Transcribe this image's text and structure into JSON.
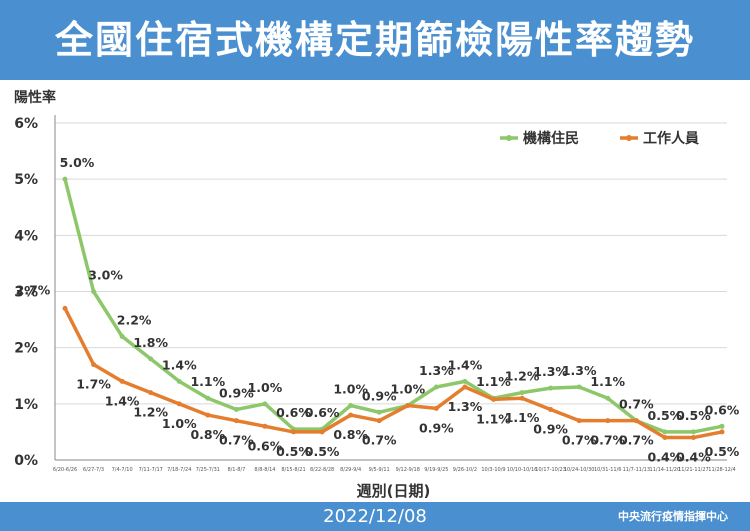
{
  "header": {
    "title": "全國住宿式機構定期篩檢陽性率趨勢"
  },
  "footer": {
    "date": "2022/12/08",
    "org": "中央流行疫情指揮中心"
  },
  "colors": {
    "band": "#4a8fd0",
    "residents": "#8cc86a",
    "staff": "#e57d2e",
    "grid": "#d9d9d9",
    "axis": "#888888"
  },
  "chart_data": {
    "type": "line",
    "ylabel": "陽性率",
    "xlabel": "週別(日期)",
    "ylim": [
      0,
      6
    ],
    "yticks": [
      "0%",
      "1%",
      "2%",
      "3%",
      "4%",
      "5%",
      "6%"
    ],
    "grid": "horizontal",
    "legend": "top-right",
    "categories": [
      "6/20-6/26",
      "6/27-7/3",
      "7/4-7/10",
      "7/11-7/17",
      "7/18-7/24",
      "7/25-7/31",
      "8/1-8/7",
      "8/8-8/14",
      "8/15-8/21",
      "8/22-8/28",
      "8/29-9/4",
      "9/5-9/11",
      "9/12-9/18",
      "9/19-9/25",
      "9/26-10/2",
      "10/3-10/9",
      "10/10-10/16",
      "10/17-10/23",
      "10/24-10/30",
      "10/31-11/6",
      "11/7-11/13",
      "11/14-11/20",
      "11/21-11/27",
      "11/28-12/4"
    ],
    "series": [
      {
        "name": "機構住民",
        "color": "#8cc86a",
        "values": [
          5.0,
          3.0,
          2.2,
          1.8,
          1.4,
          1.1,
          0.9,
          1.0,
          0.55,
          0.55,
          0.97,
          0.85,
          0.97,
          1.3,
          1.4,
          1.1,
          1.2,
          1.28,
          1.3,
          1.1,
          0.7,
          0.5,
          0.5,
          0.6
        ],
        "labels": [
          "5.0%",
          "3.0%",
          "2.2%",
          "1.8%",
          "1.4%",
          "1.1%",
          "0.9%",
          "1.0%",
          "0.6%",
          "0.6%",
          "1.0%",
          "0.9%",
          "1.0%",
          "1.3%",
          "1.4%",
          "1.1%",
          "1.2%",
          "1.3%",
          "1.3%",
          "1.1%",
          "0.7%",
          "0.5%",
          "0.5%",
          "0.6%"
        ]
      },
      {
        "name": "工作人員",
        "color": "#e57d2e",
        "values": [
          2.7,
          1.7,
          1.4,
          1.2,
          1.0,
          0.8,
          0.7,
          0.6,
          0.5,
          0.5,
          0.8,
          0.7,
          0.97,
          0.92,
          1.3,
          1.08,
          1.1,
          0.9,
          0.7,
          0.7,
          0.7,
          0.4,
          0.4,
          0.5
        ],
        "labels": [
          "2.7%",
          "1.7%",
          "1.4%",
          "1.2%",
          "1.0%",
          "0.8%",
          "0.7%",
          "0.6%",
          "0.5%",
          "0.5%",
          "0.8%",
          "0.7%",
          "",
          "0.9%",
          "1.3%",
          "1.1%",
          "1.1%",
          "0.9%",
          "0.7%",
          "0.7%",
          "0.7%",
          "0.4%",
          "0.4%",
          "0.5%"
        ]
      }
    ]
  }
}
